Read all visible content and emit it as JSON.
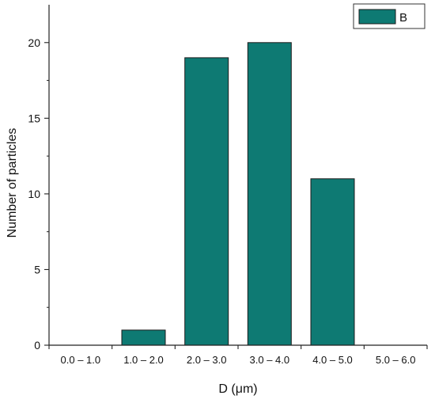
{
  "chart_data": {
    "type": "bar",
    "categories": [
      "0.0 – 1.0",
      "1.0 – 2.0",
      "2.0 – 3.0",
      "3.0 – 4.0",
      "4.0 – 5.0",
      "5.0 – 6.0"
    ],
    "series": [
      {
        "name": "B",
        "values": [
          0,
          1,
          19,
          20,
          11,
          0
        ],
        "color": "#0e7a73"
      }
    ],
    "title": "",
    "xlabel": "D (μm)",
    "ylabel": "Number of particles",
    "ylim": [
      0,
      22.5
    ],
    "yticks": [
      0,
      5,
      10,
      15,
      20
    ],
    "grid": false,
    "legend_position": "top-right"
  }
}
